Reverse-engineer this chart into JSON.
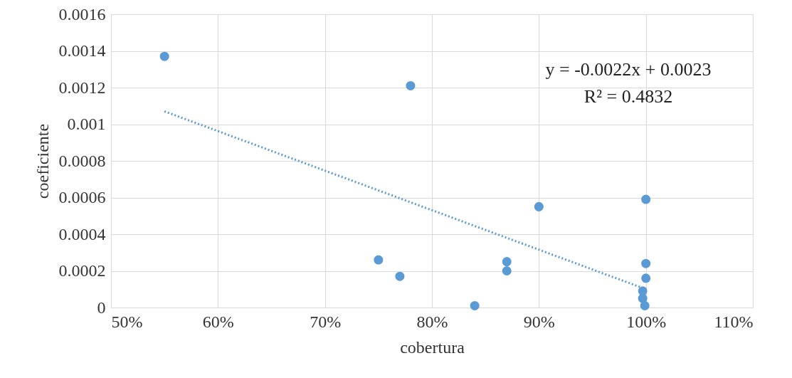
{
  "chart_data": {
    "type": "scatter",
    "xlabel": "cobertura",
    "ylabel": "coeficiente",
    "annotations": [
      "y = -0.0022x + 0.0023",
      "R² = 0.4832"
    ],
    "xlim": [
      0.5,
      1.1
    ],
    "xticks": [
      {
        "value": 0.5,
        "label": "50%"
      },
      {
        "value": 0.6,
        "label": "60%"
      },
      {
        "value": 0.7,
        "label": "70%"
      },
      {
        "value": 0.8,
        "label": "80%"
      },
      {
        "value": 0.9,
        "label": "90%"
      },
      {
        "value": 1.0,
        "label": "100%"
      },
      {
        "value": 1.1,
        "label": "110%"
      }
    ],
    "ylim": [
      0,
      0.0016
    ],
    "yticks": [
      0,
      0.0002,
      0.0004,
      0.0006,
      0.0008,
      0.001,
      0.0012,
      0.0014,
      0.0016
    ],
    "grid": true,
    "legend": false,
    "marker": "circle",
    "series": [
      {
        "color": "#5b9bd5",
        "x": [
          0.55,
          0.78,
          0.9,
          1.0,
          0.75,
          0.77,
          0.87,
          0.87,
          0.84,
          1.0,
          1.0,
          0.997,
          0.997,
          0.999
        ],
        "values": [
          0.00137,
          0.00121,
          0.00055,
          0.00059,
          0.00026,
          0.00017,
          0.00025,
          0.0002,
          1e-05,
          0.00024,
          0.00016,
          9e-05,
          5e-05,
          1e-05
        ]
      },
      {
        "type": "line",
        "color": "#5b9bd5",
        "line_style": "dotted",
        "marker": "none",
        "x": [
          0.55,
          1.0
        ],
        "values": [
          0.00107,
          0.0001
        ]
      }
    ]
  }
}
